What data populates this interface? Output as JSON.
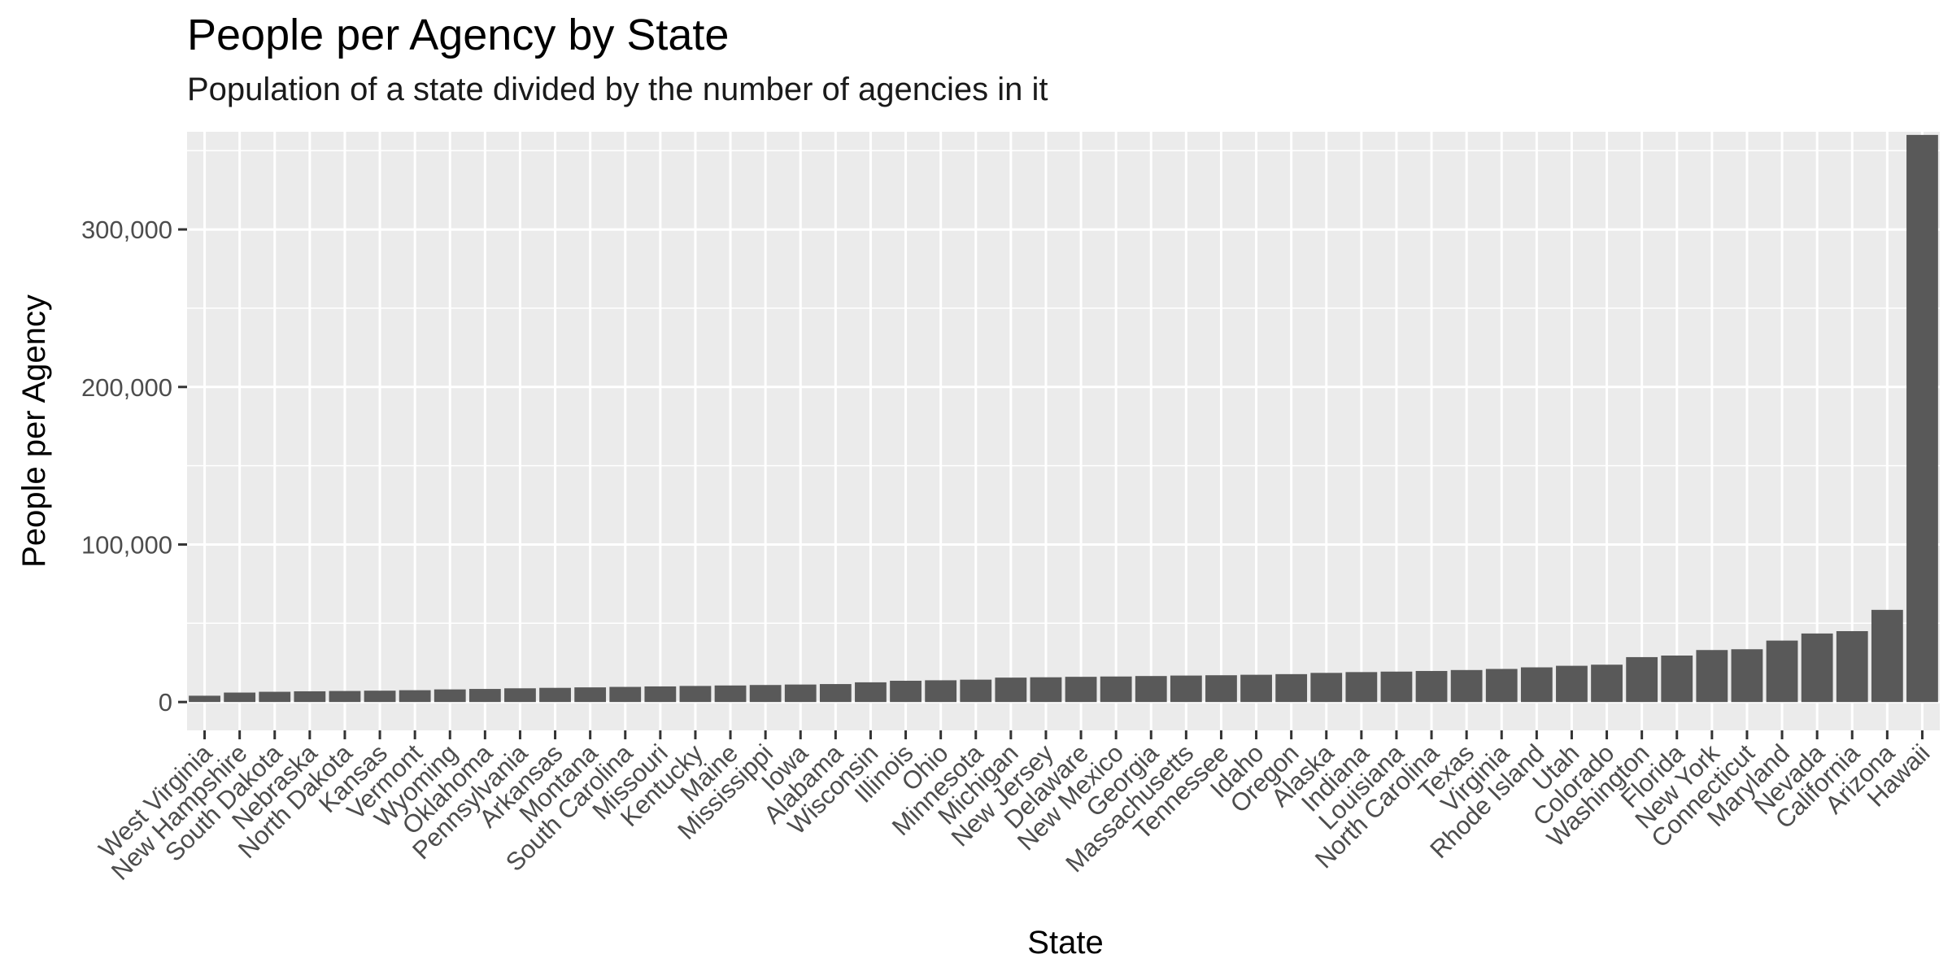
{
  "chart_data": {
    "type": "bar",
    "title": "People per Agency by State",
    "subtitle": "Population of a state divided by the number of agencies in it",
    "xlabel": "State",
    "ylabel": "People per Agency",
    "ylim": [
      -18000,
      362000
    ],
    "yticks": [
      0,
      100000,
      200000,
      300000
    ],
    "ytick_labels": [
      "0",
      "100,000",
      "200,000",
      "300,000"
    ],
    "grid": true,
    "bar_color": "#595959",
    "panel_color": "#ebebeb",
    "categories": [
      "West Virginia",
      "New Hampshire",
      "South Dakota",
      "Nebraska",
      "North Dakota",
      "Kansas",
      "Vermont",
      "Wyoming",
      "Oklahoma",
      "Pennsylvania",
      "Arkansas",
      "Montana",
      "South Carolina",
      "Missouri",
      "Kentucky",
      "Maine",
      "Mississippi",
      "Iowa",
      "Alabama",
      "Wisconsin",
      "Illinois",
      "Ohio",
      "Minnesota",
      "Michigan",
      "New Jersey",
      "Delaware",
      "New Mexico",
      "Georgia",
      "Massachusetts",
      "Tennessee",
      "Idaho",
      "Oregon",
      "Alaska",
      "Indiana",
      "Louisiana",
      "North Carolina",
      "Texas",
      "Virginia",
      "Rhode Island",
      "Utah",
      "Colorado",
      "Washington",
      "Florida",
      "New York",
      "Connecticut",
      "Maryland",
      "Nevada",
      "California",
      "Arizona",
      "Hawaii"
    ],
    "values": [
      4000,
      6000,
      6500,
      6800,
      7000,
      7200,
      7500,
      8000,
      8300,
      8700,
      9000,
      9300,
      9600,
      9900,
      10200,
      10500,
      10800,
      11100,
      11400,
      12500,
      13500,
      13800,
      14200,
      15500,
      15700,
      16000,
      16200,
      16500,
      16800,
      17000,
      17300,
      17700,
      18500,
      19000,
      19300,
      19700,
      20300,
      21000,
      22000,
      23000,
      23700,
      28500,
      29500,
      33000,
      33500,
      39000,
      43500,
      45000,
      58500,
      360000
    ]
  }
}
